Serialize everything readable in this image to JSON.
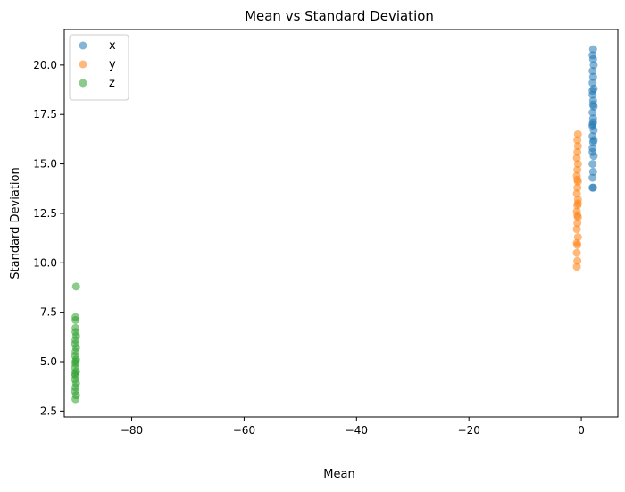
{
  "chart_data": {
    "type": "scatter",
    "title": "Mean vs Standard Deviation",
    "xlabel": "Mean",
    "ylabel": "Standard Deviation",
    "xlim": [
      -92.0,
      6.5
    ],
    "ylim": [
      2.2,
      21.8
    ],
    "xticks": [
      -80,
      -60,
      -40,
      -20,
      0
    ],
    "xtick_labels": [
      "−80",
      "−60",
      "−40",
      "−20",
      "0"
    ],
    "yticks": [
      2.5,
      5.0,
      7.5,
      10.0,
      12.5,
      15.0,
      17.5,
      20.0
    ],
    "ytick_labels": [
      "2.5",
      "5.0",
      "7.5",
      "10.0",
      "12.5",
      "15.0",
      "17.5",
      "20.0"
    ],
    "grid": false,
    "legend_position": "upper-left",
    "series": [
      {
        "name": "x",
        "color": "#1f77b4",
        "points": [
          [
            2.0,
            13.8
          ],
          [
            2.1,
            13.8
          ],
          [
            2.0,
            14.3
          ],
          [
            2.1,
            14.6
          ],
          [
            2.0,
            15.0
          ],
          [
            2.2,
            15.4
          ],
          [
            2.0,
            15.8
          ],
          [
            2.1,
            16.1
          ],
          [
            2.0,
            16.4
          ],
          [
            2.2,
            16.7
          ],
          [
            2.0,
            17.0
          ],
          [
            2.1,
            17.3
          ],
          [
            2.0,
            17.6
          ],
          [
            2.2,
            17.9
          ],
          [
            2.1,
            18.2
          ],
          [
            2.0,
            18.5
          ],
          [
            2.2,
            18.8
          ],
          [
            2.0,
            19.1
          ],
          [
            2.1,
            19.4
          ],
          [
            2.0,
            19.7
          ],
          [
            2.2,
            20.0
          ],
          [
            2.1,
            20.3
          ],
          [
            2.0,
            20.5
          ],
          [
            2.1,
            20.8
          ],
          [
            2.0,
            16.9
          ],
          [
            2.1,
            17.1
          ],
          [
            2.2,
            16.2
          ],
          [
            2.0,
            15.6
          ],
          [
            2.1,
            18.0
          ],
          [
            2.0,
            18.7
          ]
        ]
      },
      {
        "name": "y",
        "color": "#ff7f0e",
        "points": [
          [
            -0.8,
            9.8
          ],
          [
            -0.7,
            10.1
          ],
          [
            -0.8,
            10.5
          ],
          [
            -0.7,
            10.9
          ],
          [
            -0.6,
            11.3
          ],
          [
            -0.8,
            11.7
          ],
          [
            -0.7,
            12.0
          ],
          [
            -0.6,
            12.3
          ],
          [
            -0.8,
            12.6
          ],
          [
            -0.7,
            12.9
          ],
          [
            -0.6,
            13.2
          ],
          [
            -0.8,
            13.5
          ],
          [
            -0.7,
            13.8
          ],
          [
            -0.6,
            14.1
          ],
          [
            -0.8,
            14.4
          ],
          [
            -0.7,
            14.7
          ],
          [
            -0.6,
            15.0
          ],
          [
            -0.8,
            15.3
          ],
          [
            -0.7,
            15.6
          ],
          [
            -0.6,
            15.9
          ],
          [
            -0.7,
            16.2
          ],
          [
            -0.6,
            16.5
          ],
          [
            -0.7,
            12.4
          ],
          [
            -0.6,
            13.0
          ],
          [
            -0.8,
            11.0
          ],
          [
            -0.7,
            14.2
          ]
        ]
      },
      {
        "name": "z",
        "color": "#2ca02c",
        "points": [
          [
            -90.0,
            3.1
          ],
          [
            -89.9,
            3.3
          ],
          [
            -90.1,
            3.5
          ],
          [
            -90.0,
            3.7
          ],
          [
            -89.9,
            3.9
          ],
          [
            -90.1,
            4.1
          ],
          [
            -90.0,
            4.3
          ],
          [
            -89.9,
            4.5
          ],
          [
            -90.1,
            4.7
          ],
          [
            -90.0,
            4.9
          ],
          [
            -89.9,
            5.1
          ],
          [
            -90.1,
            5.3
          ],
          [
            -90.0,
            5.5
          ],
          [
            -89.9,
            5.7
          ],
          [
            -90.1,
            5.9
          ],
          [
            -90.0,
            6.1
          ],
          [
            -89.9,
            6.3
          ],
          [
            -90.0,
            6.5
          ],
          [
            -90.0,
            6.7
          ],
          [
            -90.0,
            7.1
          ],
          [
            -90.0,
            7.25
          ],
          [
            -89.9,
            8.8
          ],
          [
            -90.1,
            4.4
          ],
          [
            -90.0,
            5.0
          ]
        ]
      }
    ]
  }
}
